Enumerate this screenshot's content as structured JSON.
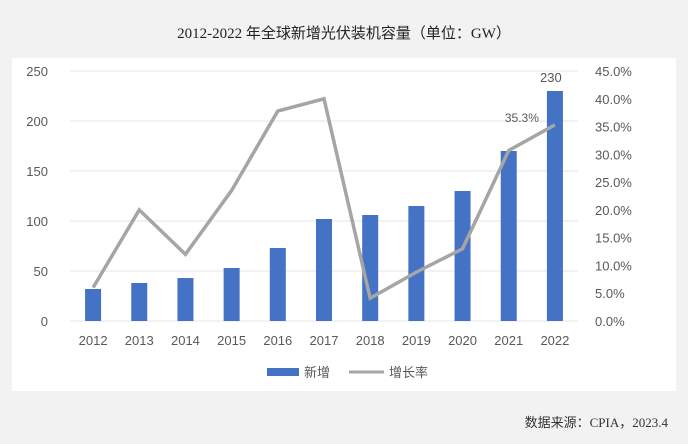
{
  "title": "2012-2022 年全球新增光伏装机容量（单位：GW）",
  "source": "数据来源：CPIA，2023.4",
  "colors": {
    "bar": "#4472c4",
    "line": "#a5a5a5",
    "grid": "#e6e6e6",
    "axis_text": "#595959"
  },
  "chart_data": {
    "type": "bar",
    "title": "2012-2022 年全球新增光伏装机容量（单位：GW）",
    "categories": [
      "2012",
      "2013",
      "2014",
      "2015",
      "2016",
      "2017",
      "2018",
      "2019",
      "2020",
      "2021",
      "2022"
    ],
    "series": [
      {
        "name": "新增",
        "type": "bar",
        "axis": "left",
        "values": [
          32,
          38,
          43,
          53,
          73,
          102,
          106,
          115,
          130,
          170,
          230
        ]
      },
      {
        "name": "增长率",
        "type": "line",
        "axis": "right",
        "values": [
          6.0,
          20.0,
          12.0,
          23.5,
          37.8,
          40.0,
          4.1,
          8.8,
          13.0,
          30.7,
          35.3
        ]
      }
    ],
    "xlabel": "",
    "ylabel": "",
    "ylim": [
      0,
      250
    ],
    "yticks": [
      "0",
      "50",
      "100",
      "150",
      "200",
      "250"
    ],
    "y2lim": [
      0,
      45
    ],
    "y2ticks": [
      "0.0%",
      "5.0%",
      "10.0%",
      "15.0%",
      "20.0%",
      "25.0%",
      "30.0%",
      "35.0%",
      "40.0%",
      "45.0%"
    ],
    "annotations": [
      {
        "text": "230",
        "target": "2022 bar"
      },
      {
        "text": "35.3%",
        "target": "2022 line"
      }
    ],
    "grid": true,
    "legend_position": "bottom"
  },
  "legend": [
    {
      "label": "新增"
    },
    {
      "label": "增长率"
    }
  ]
}
